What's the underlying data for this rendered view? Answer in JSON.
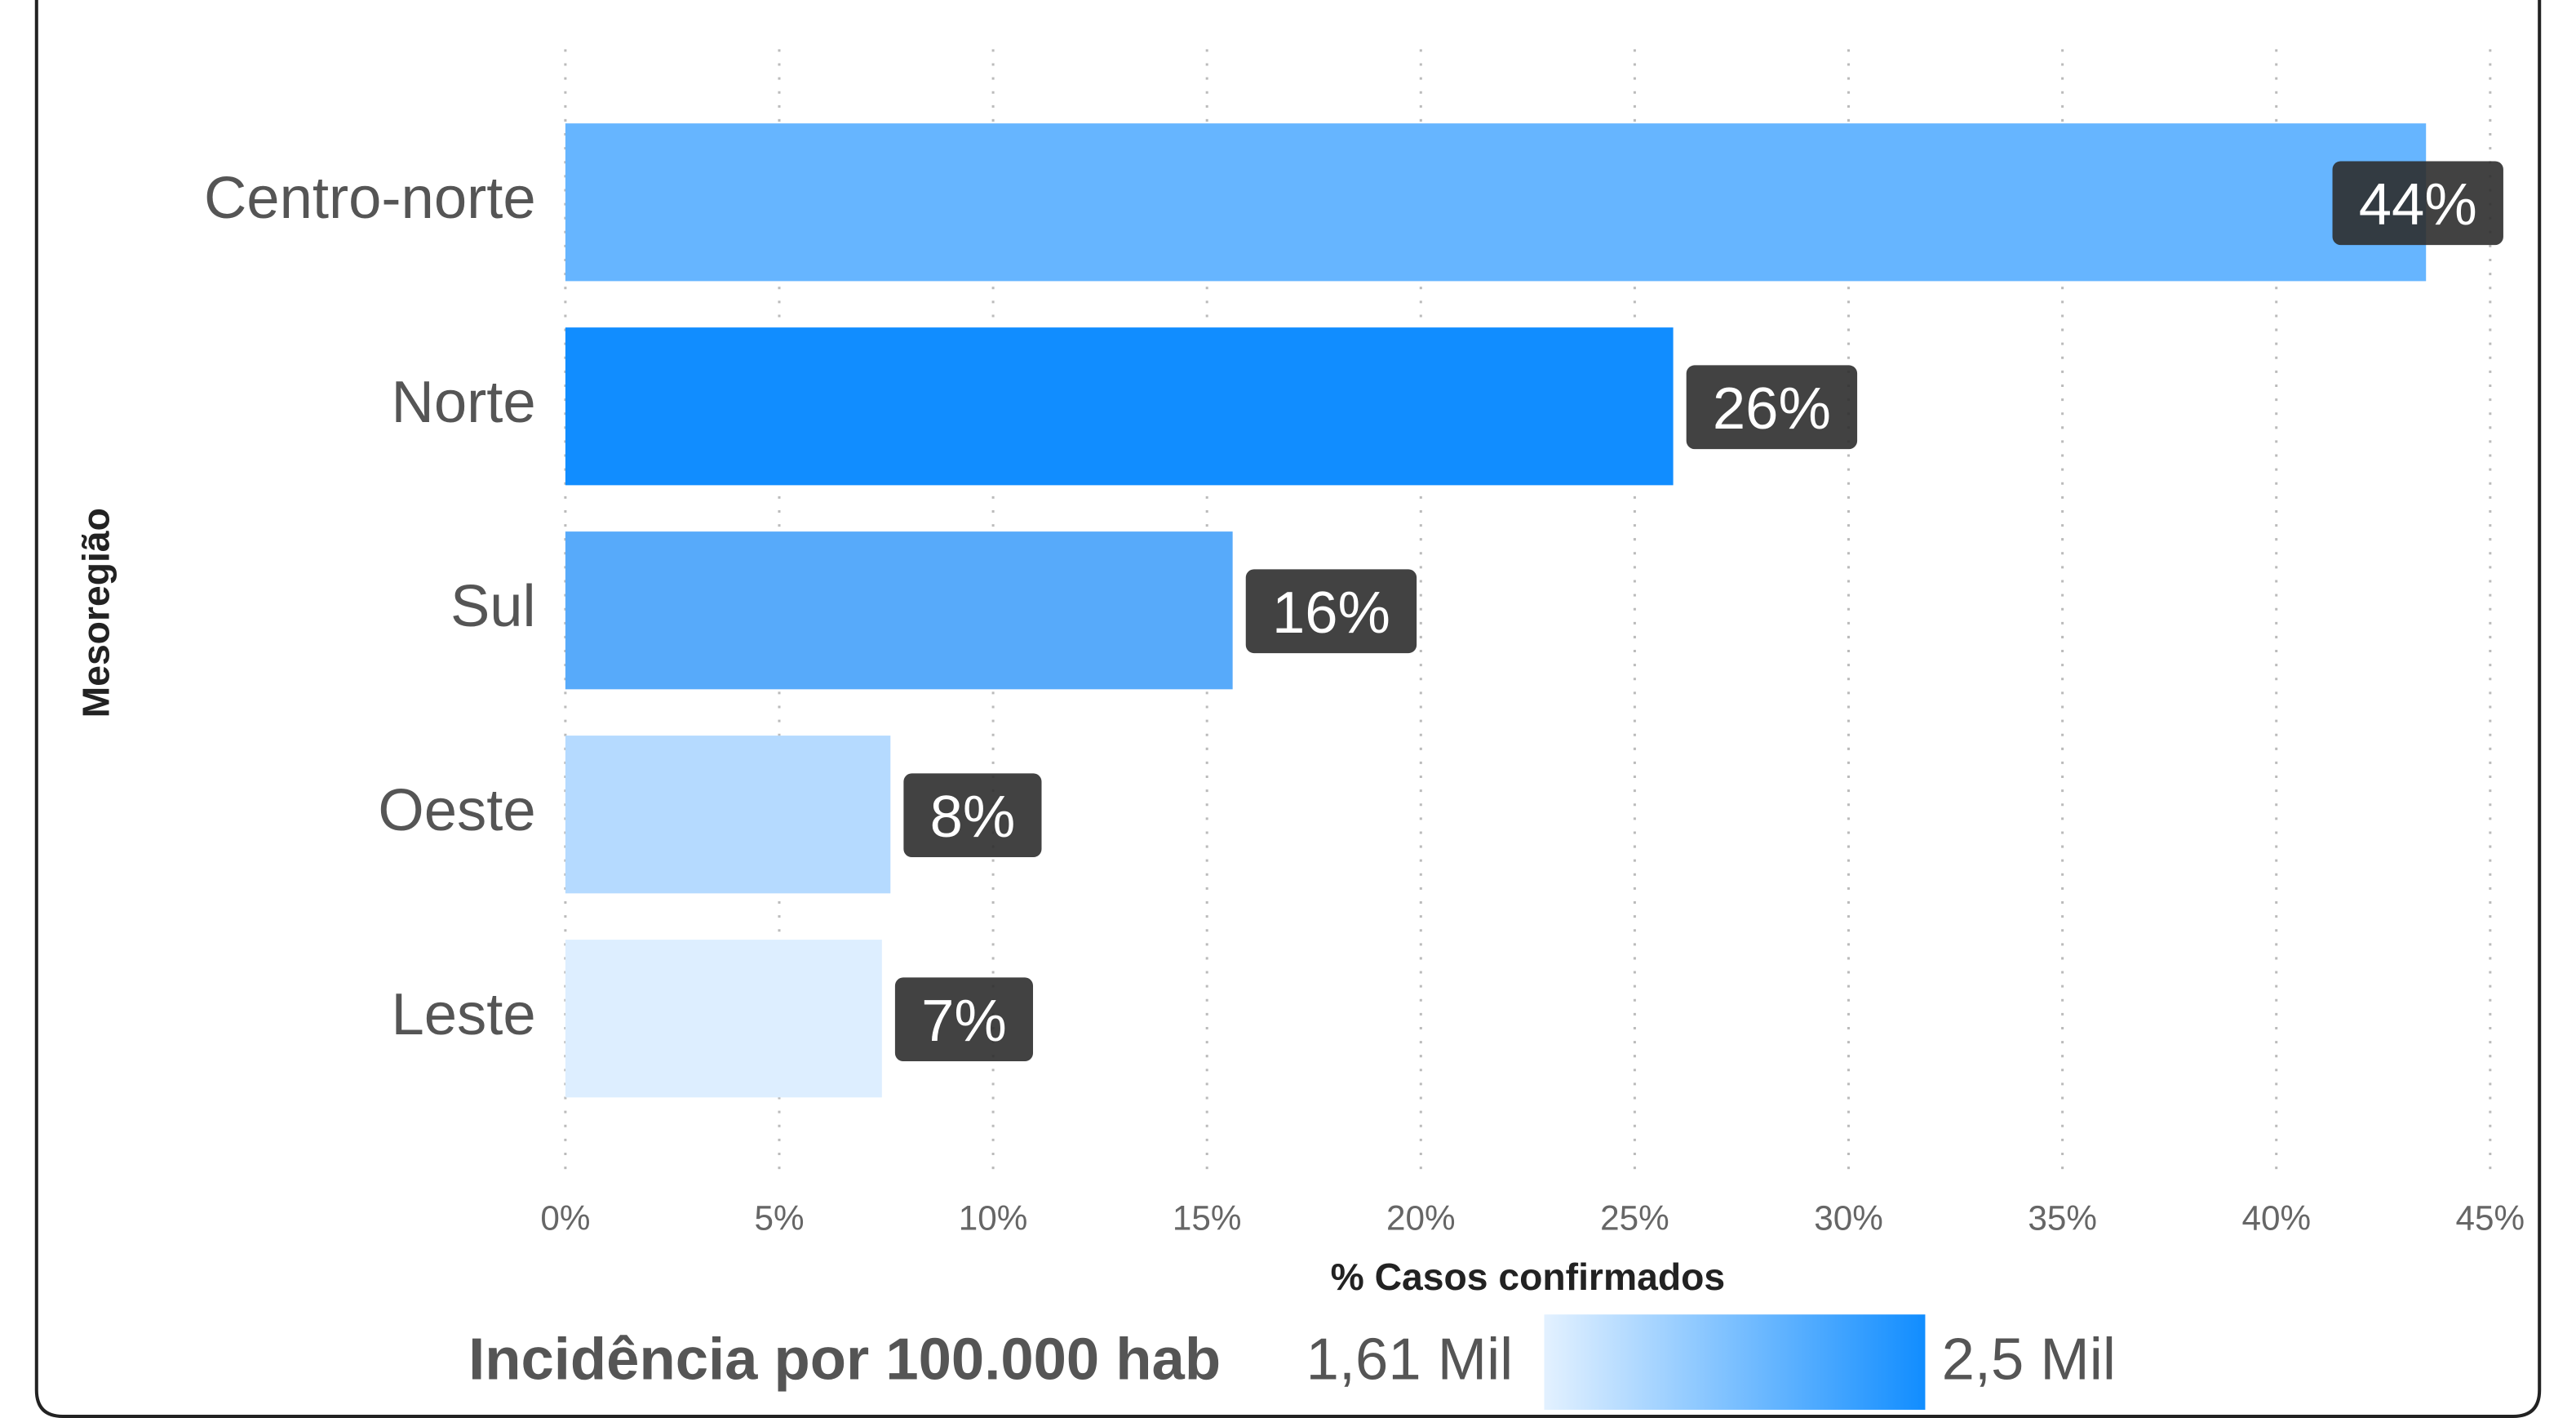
{
  "chart_data": {
    "type": "hbar",
    "categories": [
      "Centro-norte",
      "Norte",
      "Sul",
      "Oeste",
      "Leste"
    ],
    "values": [
      43.5,
      25.9,
      15.6,
      7.6,
      7.4
    ],
    "value_labels": [
      "44%",
      "26%",
      "16%",
      "8%",
      "7%"
    ],
    "colors": [
      "#66b5ff",
      "#118dff",
      "#57aafa",
      "#b5daff",
      "#ddeeff"
    ],
    "xlim": [
      0,
      45
    ],
    "xticks": [
      {
        "value": 0,
        "label": "0%"
      },
      {
        "value": 5,
        "label": "5%"
      },
      {
        "value": 10,
        "label": "10%"
      },
      {
        "value": 15,
        "label": "15%"
      },
      {
        "value": 20,
        "label": "20%"
      },
      {
        "value": 25,
        "label": "25%"
      },
      {
        "value": 30,
        "label": "30%"
      },
      {
        "value": 35,
        "label": "35%"
      },
      {
        "value": 40,
        "label": "40%"
      },
      {
        "value": 45,
        "label": "45%"
      }
    ],
    "grid": true,
    "xlabel": "% Casos confirmados",
    "ylabel": "Mesoregião",
    "color_legend": {
      "title": "Incidência por 100.000 hab",
      "min_label": "1,61 Mil",
      "max_label": "2,5 Mil",
      "min_color": "#e3f1ff",
      "max_color": "#118dff"
    }
  }
}
